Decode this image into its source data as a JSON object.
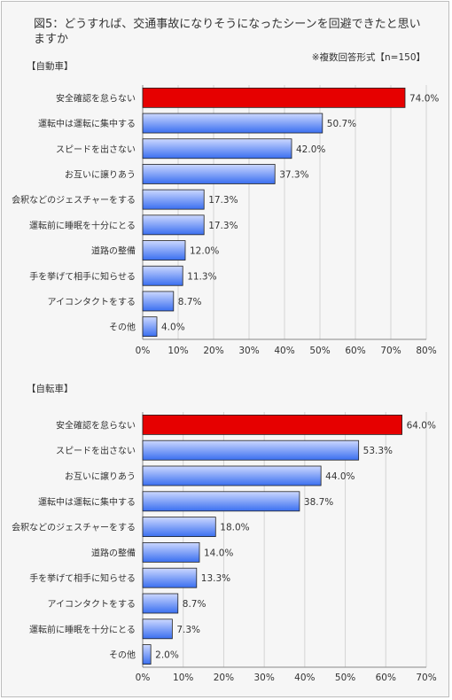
{
  "title": "図5：どうすれば、交通事故になりそうになったシーンを回避できたと思いますか",
  "note": "※複数回答形式【n=150】",
  "colors": {
    "highlight": "#e60000",
    "bar_top": "#ccd8ff",
    "bar_bottom": "#3a6ff0",
    "grid": "#d4d4d4",
    "axis": "#888888"
  },
  "chart_data": [
    {
      "type": "bar",
      "orientation": "horizontal",
      "title": "【自動車】",
      "categories": [
        "安全確認を怠らない",
        "運転中は運転に集中する",
        "スピードを出さない",
        "お互いに譲りあう",
        "会釈などのジェスチャーをする",
        "運転前に睡眠を十分にとる",
        "道路の整備",
        "手を挙げて相手に知らせる",
        "アイコンタクトをする",
        "その他"
      ],
      "values": [
        74.0,
        50.7,
        42.0,
        37.3,
        17.3,
        17.3,
        12.0,
        11.3,
        8.7,
        4.0
      ],
      "value_labels": [
        "74.0%",
        "50.7%",
        "42.0%",
        "37.3%",
        "17.3%",
        "17.3%",
        "12.0%",
        "11.3%",
        "8.7%",
        "4.0%"
      ],
      "xlim": [
        0,
        80
      ],
      "ticks": [
        "0%",
        "10%",
        "20%",
        "30%",
        "40%",
        "50%",
        "60%",
        "70%",
        "80%"
      ],
      "grid": true
    },
    {
      "type": "bar",
      "orientation": "horizontal",
      "title": "【自転車】",
      "categories": [
        "安全確認を怠らない",
        "スピードを出さない",
        "お互いに譲りあう",
        "運転中は運転に集中する",
        "会釈などのジェスチャーをする",
        "道路の整備",
        "手を挙げて相手に知らせる",
        "アイコンタクトをする",
        "運転前に睡眠を十分にとる",
        "その他"
      ],
      "values": [
        64.0,
        53.3,
        44.0,
        38.7,
        18.0,
        14.0,
        13.3,
        8.7,
        7.3,
        2.0
      ],
      "value_labels": [
        "64.0%",
        "53.3%",
        "44.0%",
        "38.7%",
        "18.0%",
        "14.0%",
        "13.3%",
        "8.7%",
        "7.3%",
        "2.0%"
      ],
      "xlim": [
        0,
        70
      ],
      "ticks": [
        "0%",
        "10%",
        "20%",
        "30%",
        "40%",
        "50%",
        "60%",
        "70%"
      ],
      "grid": true
    }
  ]
}
